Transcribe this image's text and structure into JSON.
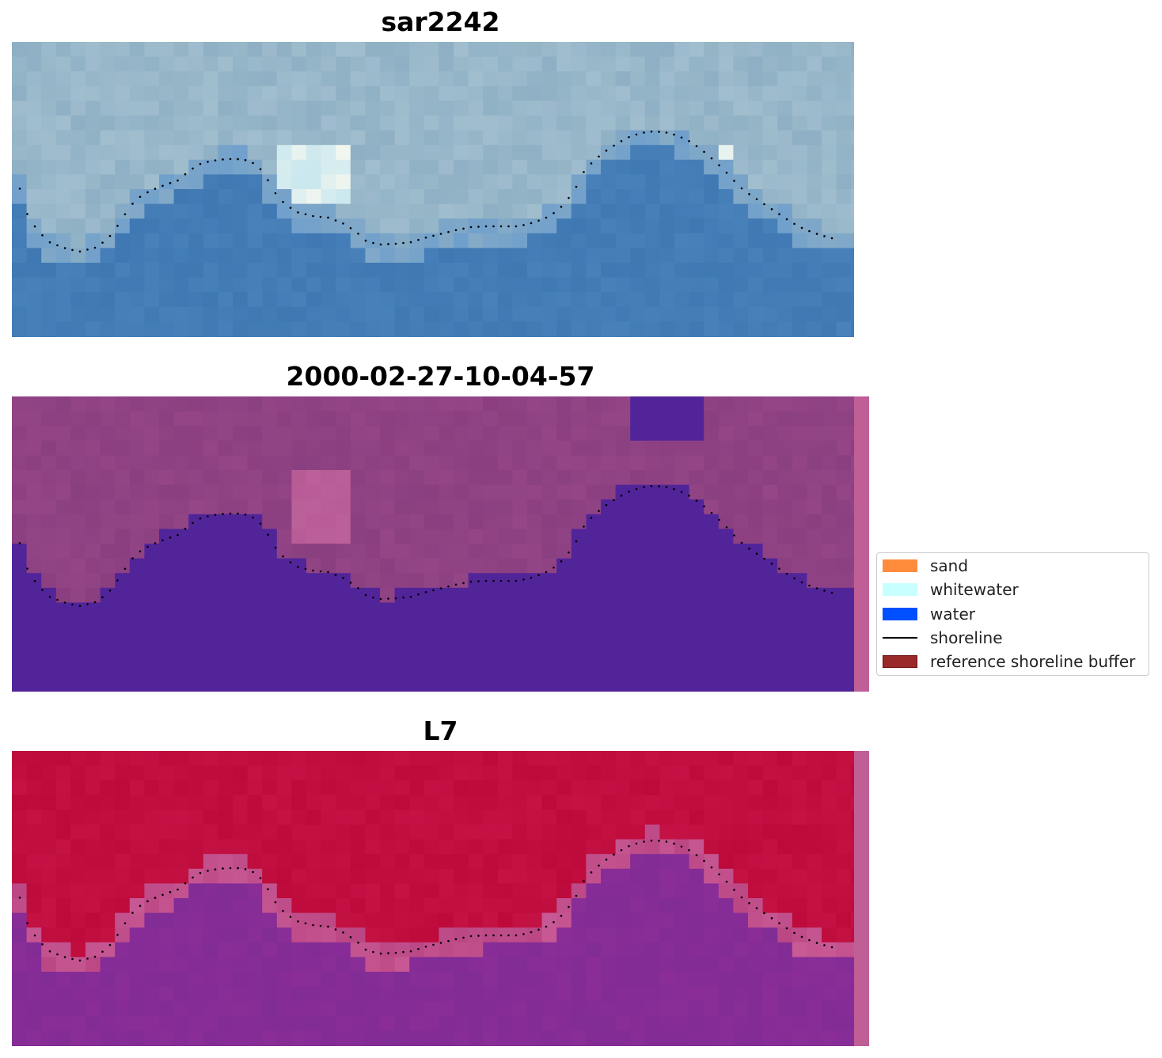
{
  "panels": [
    {
      "title": "sar2242",
      "kind": "rgb"
    },
    {
      "title": "2000-02-27-10-04-57",
      "kind": "classified"
    },
    {
      "title": "L7",
      "kind": "index"
    }
  ],
  "legend": {
    "items": [
      {
        "label": "sand",
        "type": "patch",
        "color": "#ff8c3c"
      },
      {
        "label": "whitewater",
        "type": "patch",
        "color": "#c8ffff"
      },
      {
        "label": "water",
        "type": "patch",
        "color": "#0050ff"
      },
      {
        "label": "shoreline",
        "type": "line",
        "color": "#000000"
      },
      {
        "label": "reference shoreline buffer",
        "type": "patch",
        "color": "#9a2a2a",
        "edge": "#6a1010"
      }
    ]
  },
  "colors": {
    "rgb_water": "#3f78b2",
    "rgb_land": "#8fb0c4",
    "rgb_whitewater": "#f2f6ef",
    "class_water": "#52249a",
    "class_land": "#8a3f80",
    "class_bright": "#b85a95",
    "index_land": "#bd0a3a",
    "index_water": "#8a2d97",
    "index_edge": "#c85a95",
    "buffer_strip": "#bf5f96",
    "shoreline": "#000000"
  }
}
